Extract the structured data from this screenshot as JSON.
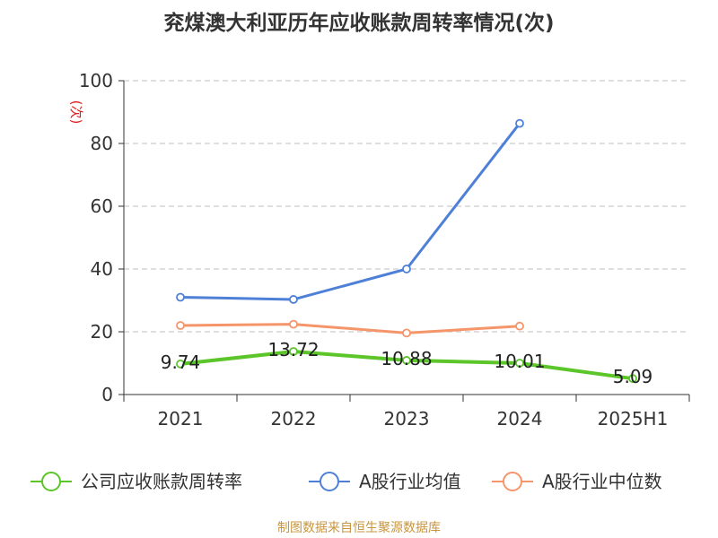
{
  "chart_data": {
    "type": "line",
    "title": "兖煤澳大利亚历年应收账款周转率情况(次)",
    "ylabel": "(次)",
    "categories": [
      "2021",
      "2022",
      "2023",
      "2024",
      "2025H1"
    ],
    "ylim": [
      0,
      100
    ],
    "yticks": [
      0,
      20,
      40,
      60,
      80,
      100
    ],
    "grid": true,
    "legend_position": "bottom",
    "series": [
      {
        "name": "公司应收账款周转率",
        "color": "#5bc529",
        "values": [
          9.74,
          13.72,
          10.88,
          10.01,
          5.09
        ],
        "labels": [
          "9.74",
          "13.72",
          "10.88",
          "10.01",
          "5.09"
        ]
      },
      {
        "name": "A股行业均值",
        "color": "#4e80d8",
        "values": [
          31,
          30.3,
          40,
          86.4,
          null
        ]
      },
      {
        "name": "A股行业中位数",
        "color": "#f5956a",
        "values": [
          22,
          22.4,
          19.6,
          21.8,
          null
        ]
      }
    ]
  },
  "source_text": "制图数据来自恒生聚源数据库",
  "colors": {
    "title": "#333333",
    "ylabel": "#e02020",
    "source": "#c8953e",
    "grid": "#cccccc",
    "axis": "#333333"
  }
}
